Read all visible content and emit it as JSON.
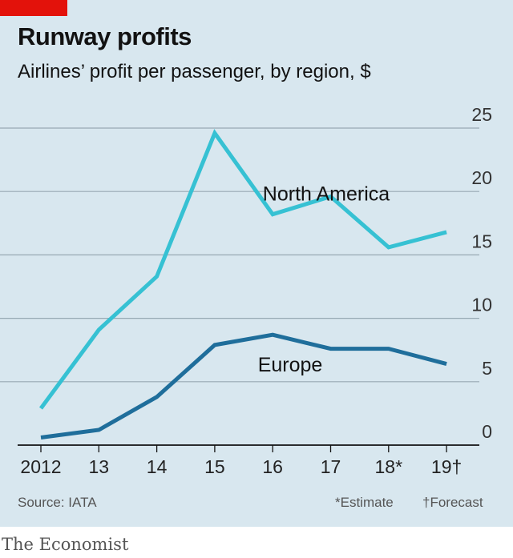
{
  "header": {
    "title": "Runway profits",
    "subtitle": "Airlines’ profit per passenger, by region, $"
  },
  "footer": {
    "source": "Source: IATA",
    "estimate_note": "*Estimate",
    "forecast_note": "†Forecast",
    "logo": "The Economist"
  },
  "colors": {
    "accent": "#e3120b",
    "background": "#d8e7ef",
    "north_america": "#36c1d3",
    "europe": "#1f6e9b",
    "gridline": "#97a9b3",
    "axis": "#121212"
  },
  "chart_data": {
    "type": "line",
    "categories": [
      "2012",
      "13",
      "14",
      "15",
      "16",
      "17",
      "18*",
      "19†"
    ],
    "series": [
      {
        "name": "North America",
        "values": [
          2.9,
          9.1,
          13.3,
          24.6,
          18.2,
          19.6,
          15.6,
          16.8
        ]
      },
      {
        "name": "Europe",
        "values": [
          0.6,
          1.2,
          3.8,
          7.9,
          8.7,
          7.6,
          7.6,
          6.4
        ]
      }
    ],
    "yticks": [
      0,
      5,
      10,
      15,
      20,
      25
    ],
    "ylim": [
      0,
      25
    ],
    "y_axis_side": "right",
    "grid": true
  }
}
